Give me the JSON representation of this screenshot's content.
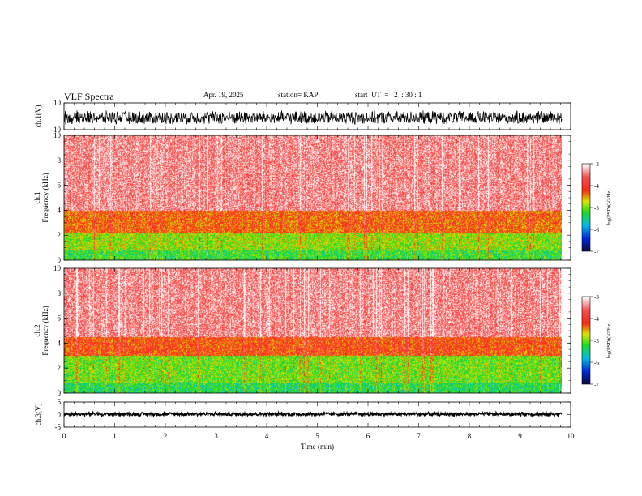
{
  "header": {
    "title": "VLF Spectra",
    "date": "Apr. 19, 2025",
    "station": "station= KAP",
    "start": "start  UT  =   2  : 30 : 1"
  },
  "chart_data": [
    {
      "type": "line",
      "panel": "ch1-waveform",
      "ylabel": "ch.1(V)",
      "ylim": [
        -10,
        10
      ],
      "yticks": [
        "10",
        "-10"
      ],
      "xlim": [
        0,
        10
      ],
      "x_end": 9.83,
      "note_values": "dense noise waveform, mostly between -5 and 5 V"
    },
    {
      "type": "heatmap",
      "panel": "ch1-spectrogram",
      "ylabel": "ch.1\nFrequency (kHz)",
      "ylabel_lines": [
        "ch.1",
        "Frequency  (kHz)"
      ],
      "ylim": [
        0,
        10
      ],
      "yticks": [
        "0",
        "2",
        "4",
        "6",
        "8",
        "10"
      ],
      "xlim": [
        0,
        10
      ],
      "x_end": 9.83,
      "colorbar": {
        "label": "log(PSD)(V²/Hz)",
        "ticks": [
          "-3",
          "-4",
          "-5",
          "-6",
          "-7"
        ],
        "range": [
          -7,
          -3
        ]
      },
      "bands_khz": [
        {
          "from": 0.0,
          "to": 0.8,
          "level": -5.2
        },
        {
          "from": 0.8,
          "to": 2.2,
          "level": -4.9
        },
        {
          "from": 2.2,
          "to": 4.0,
          "level": -4.3
        },
        {
          "from": 4.0,
          "to": 10.0,
          "level": -3.4
        }
      ]
    },
    {
      "type": "heatmap",
      "panel": "ch2-spectrogram",
      "ylabel": "ch.2\nFrequency (kHz)",
      "ylabel_lines": [
        "ch.2",
        "Frequency  (kHz)"
      ],
      "ylim": [
        0,
        10
      ],
      "yticks": [
        "0",
        "2",
        "4",
        "6",
        "8",
        "10"
      ],
      "xlim": [
        0,
        10
      ],
      "x_end": 9.83,
      "colorbar": {
        "label": "log(PSD)(V²/Hz)",
        "ticks": [
          "-3",
          "-4",
          "-5",
          "-6",
          "-7"
        ],
        "range": [
          -7,
          -3
        ]
      },
      "bands_khz": [
        {
          "from": 0.0,
          "to": 0.8,
          "level": -5.3
        },
        {
          "from": 0.8,
          "to": 3.0,
          "level": -5.0
        },
        {
          "from": 3.0,
          "to": 4.5,
          "level": -4.2
        },
        {
          "from": 4.5,
          "to": 10.0,
          "level": -3.4
        }
      ]
    },
    {
      "type": "line",
      "panel": "ch3-waveform",
      "ylabel": "ch.3(V)",
      "ylim": [
        -5,
        5
      ],
      "yticks": [
        "5",
        "0",
        "-5"
      ],
      "xlim": [
        0,
        10
      ],
      "x_end": 9.83,
      "xlabel": "Time  (min)",
      "xticks": [
        "0",
        "1",
        "2",
        "3",
        "4",
        "5",
        "6",
        "7",
        "8",
        "9",
        "10"
      ],
      "note_values": "narrow band around 0 V"
    }
  ],
  "colors": {
    "axis": "#000000",
    "background": "#ffffff"
  }
}
